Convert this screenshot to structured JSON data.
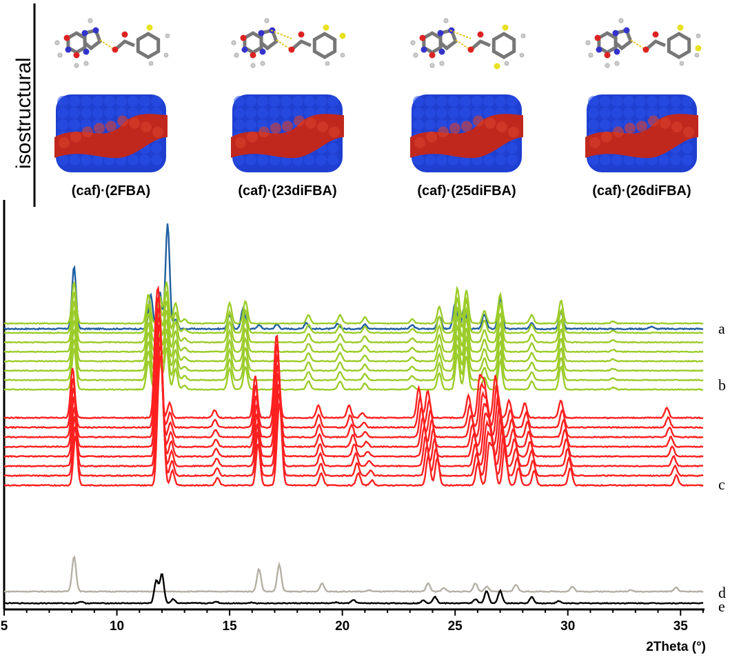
{
  "header": {
    "side_label": "isostructural",
    "panels": [
      {
        "title": "(caf)·(2FBA)",
        "fluorine_sites": [
          "ortho"
        ]
      },
      {
        "title": "(caf)·(23diFBA)",
        "fluorine_sites": [
          "ortho",
          "meta"
        ]
      },
      {
        "title": "(caf)·(25diFBA)",
        "fluorine_sites": [
          "ortho",
          "meta-far"
        ]
      },
      {
        "title": "(caf)·(26diFBA)",
        "fluorine_sites": [
          "ortho",
          "ortho-far"
        ]
      }
    ],
    "colors": {
      "host_blue": "#1f3fd0",
      "guest_red": "#c0281e"
    }
  },
  "chart_data": {
    "type": "line",
    "xlabel": "2Theta (°)",
    "ylabel": "",
    "xlim": [
      5,
      36
    ],
    "xticks": [
      5,
      10,
      15,
      20,
      25,
      30,
      35
    ],
    "tick_labels": [
      "5",
      "10",
      "15",
      "20",
      "25",
      "30",
      "35"
    ],
    "grid": false,
    "trace_labels": [
      {
        "label": "a",
        "group": "a"
      },
      {
        "label": "b",
        "group": "b"
      },
      {
        "label": "c",
        "group": "c"
      },
      {
        "label": "d",
        "group": "d"
      },
      {
        "label": "e",
        "group": "e"
      }
    ],
    "groups": {
      "a": {
        "color": "#1f5fa0",
        "count": 1,
        "baseline": 0.8,
        "scale": 1.0,
        "peaks": [
          [
            8.1,
            1.0
          ],
          [
            11.5,
            0.55
          ],
          [
            11.9,
            0.6
          ],
          [
            12.25,
            1.7
          ],
          [
            12.6,
            0.15
          ],
          [
            15.0,
            0.22
          ],
          [
            15.6,
            0.32
          ],
          [
            16.3,
            0.06
          ],
          [
            17.1,
            0.07
          ],
          [
            18.4,
            0.1
          ],
          [
            19.8,
            0.08
          ],
          [
            21.0,
            0.08
          ],
          [
            23.1,
            0.06
          ],
          [
            24.3,
            0.2
          ],
          [
            25.0,
            0.4
          ],
          [
            25.4,
            0.32
          ],
          [
            26.3,
            0.24
          ],
          [
            27.0,
            0.5
          ],
          [
            28.4,
            0.1
          ],
          [
            29.7,
            0.28
          ],
          [
            33.7,
            0.04
          ]
        ]
      },
      "b": {
        "color": "#9ccc2a",
        "count": 8,
        "baseline": 1.9,
        "step": 0.18,
        "scale": 1.0,
        "peaks": [
          [
            8.1,
            1.0
          ],
          [
            11.4,
            0.7
          ],
          [
            11.9,
            0.65
          ],
          [
            12.2,
            1.0
          ],
          [
            12.6,
            0.5
          ],
          [
            13.0,
            0.1
          ],
          [
            15.0,
            0.5
          ],
          [
            15.7,
            0.55
          ],
          [
            18.5,
            0.2
          ],
          [
            19.9,
            0.2
          ],
          [
            21.0,
            0.15
          ],
          [
            23.1,
            0.1
          ],
          [
            24.3,
            0.4
          ],
          [
            25.1,
            0.85
          ],
          [
            25.5,
            0.8
          ],
          [
            26.3,
            0.3
          ],
          [
            27.0,
            0.7
          ],
          [
            28.4,
            0.2
          ],
          [
            29.7,
            0.55
          ],
          [
            32.0,
            0.05
          ]
        ]
      },
      "c": {
        "color": "#ff2020",
        "count": 8,
        "baseline": 3.55,
        "step": 0.18,
        "scale": 1.0,
        "peaks": [
          [
            8.1,
            1.0
          ],
          [
            11.8,
            1.8
          ],
          [
            11.95,
            1.9
          ],
          [
            12.4,
            0.3
          ],
          [
            14.4,
            0.15
          ],
          [
            16.2,
            0.85
          ],
          [
            17.1,
            1.0
          ],
          [
            17.2,
            0.95
          ],
          [
            19.0,
            0.25
          ],
          [
            20.5,
            0.25
          ],
          [
            21.1,
            0.1
          ],
          [
            23.6,
            0.6
          ],
          [
            24.0,
            0.55
          ],
          [
            25.8,
            0.45
          ],
          [
            26.3,
            0.8
          ],
          [
            26.5,
            0.7
          ],
          [
            27.0,
            0.85
          ],
          [
            27.6,
            0.35
          ],
          [
            28.3,
            0.3
          ],
          [
            29.9,
            0.35
          ],
          [
            34.6,
            0.2
          ]
        ]
      },
      "d": {
        "color": "#b4b0a4",
        "count": 1,
        "baseline": 5.2,
        "scale": 1.0,
        "peaks": [
          [
            8.1,
            0.85
          ],
          [
            16.3,
            0.55
          ],
          [
            17.2,
            0.65
          ],
          [
            19.1,
            0.2
          ],
          [
            21.2,
            0.03
          ],
          [
            23.8,
            0.2
          ],
          [
            24.5,
            0.08
          ],
          [
            25.9,
            0.2
          ],
          [
            26.4,
            0.12
          ],
          [
            27.7,
            0.17
          ],
          [
            30.2,
            0.12
          ],
          [
            32.8,
            0.03
          ],
          [
            34.8,
            0.1
          ]
        ]
      },
      "e": {
        "color": "#000000",
        "count": 1,
        "baseline": 5.55,
        "scale": 1.0,
        "peaks": [
          [
            8.4,
            0.04
          ],
          [
            11.75,
            0.55
          ],
          [
            12.0,
            0.7
          ],
          [
            12.5,
            0.1
          ],
          [
            14.4,
            0.04
          ],
          [
            16.0,
            0.02
          ],
          [
            19.7,
            0.02
          ],
          [
            20.5,
            0.08
          ],
          [
            23.6,
            0.07
          ],
          [
            24.1,
            0.16
          ],
          [
            25.9,
            0.1
          ],
          [
            26.4,
            0.3
          ],
          [
            27.0,
            0.3
          ],
          [
            28.4,
            0.15
          ],
          [
            29.6,
            0.05
          ]
        ]
      }
    }
  }
}
